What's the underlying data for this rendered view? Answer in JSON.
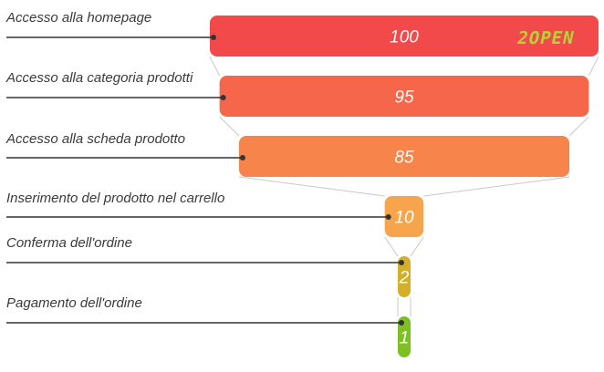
{
  "chart_data": {
    "type": "funnel",
    "categories": [
      "Accesso alla homepage",
      "Accesso alla categoria prodotti",
      "Accesso alla scheda prodotto",
      "Inserimento del prodotto nel carrello",
      "Conferma dell'ordine",
      "Pagamento dell'ordine"
    ],
    "values": [
      100,
      95,
      85,
      10,
      2,
      1
    ],
    "colors": [
      "#f24a4a",
      "#f5664a",
      "#f7844a",
      "#f7a54d",
      "#d4b02a",
      "#7cc021"
    ],
    "max": 100,
    "legend": "none"
  },
  "logo": {
    "text": "2OPEN",
    "color": "#b5d334",
    "icon": "2open-logo"
  }
}
